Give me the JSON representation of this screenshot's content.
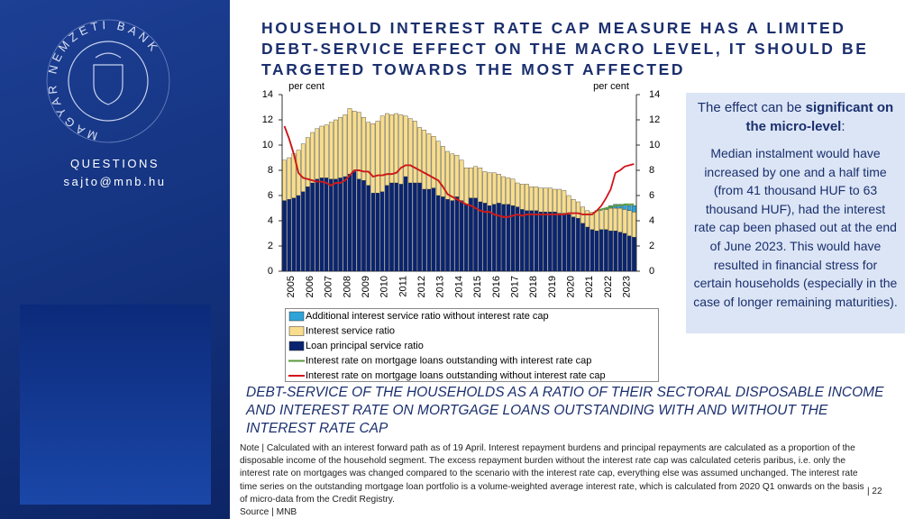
{
  "sidebar": {
    "logo_text": "MAGYAR NEMZETI BANK",
    "questions": "QUESTIONS",
    "email": "sajto@mnb.hu"
  },
  "title": "HOUSEHOLD INTEREST RATE CAP MEASURE HAS A LIMITED DEBT-SERVICE EFFECT ON THE MACRO LEVEL, IT SHOULD BE TARGETED TOWARDS THE MOST AFFECTED",
  "chart_data": {
    "type": "bar",
    "y_unit": "per cent",
    "y2_unit": "per cent",
    "categories": [
      "2005",
      null,
      null,
      null,
      "2006",
      null,
      null,
      null,
      "2007",
      null,
      null,
      null,
      "2008",
      null,
      null,
      null,
      "2009",
      null,
      null,
      null,
      "2010",
      null,
      null,
      null,
      "2011",
      null,
      null,
      null,
      "2012",
      null,
      null,
      null,
      "2013",
      null,
      null,
      null,
      "2014",
      null,
      null,
      null,
      "2015",
      null,
      null,
      null,
      "2016",
      null,
      null,
      null,
      "2017",
      null,
      null,
      null,
      "2018",
      null,
      null,
      null,
      "2019",
      null,
      null,
      null,
      "2020",
      null,
      null,
      null,
      "2021",
      null,
      null,
      null,
      "2022",
      null,
      null,
      null,
      "2023",
      null,
      null,
      null
    ],
    "ylim": [
      0,
      14
    ],
    "yticks": [
      0,
      2,
      4,
      6,
      8,
      10,
      12,
      14
    ],
    "y2lim": [
      0,
      14
    ],
    "y2ticks": [
      0,
      2,
      4,
      6,
      8,
      10,
      12,
      14
    ],
    "stacked": true,
    "series": [
      {
        "name": "Additional interest service ratio without interest rate cap",
        "type": "bar",
        "color": "#2ea3d8",
        "values": [
          null,
          null,
          null,
          null,
          null,
          null,
          null,
          null,
          null,
          null,
          null,
          null,
          null,
          null,
          null,
          null,
          null,
          null,
          null,
          null,
          null,
          null,
          null,
          null,
          null,
          null,
          null,
          null,
          null,
          null,
          null,
          null,
          null,
          null,
          null,
          null,
          null,
          null,
          null,
          null,
          null,
          null,
          null,
          null,
          null,
          null,
          null,
          null,
          null,
          null,
          null,
          null,
          null,
          null,
          null,
          null,
          null,
          null,
          null,
          null,
          null,
          null,
          null,
          null,
          null,
          null,
          null,
          null,
          null,
          0.1,
          0.2,
          0.3,
          0.3,
          0.4,
          0.4,
          0.5
        ]
      },
      {
        "name": "Interest service ratio",
        "type": "bar",
        "color": "#f7dd8c",
        "values": [
          3.2,
          3.3,
          3.5,
          3.6,
          3.8,
          3.9,
          4.0,
          4.0,
          4.1,
          4.2,
          4.5,
          4.7,
          4.8,
          4.9,
          5.2,
          4.8,
          5.3,
          5.0,
          5.0,
          5.5,
          5.7,
          6.0,
          5.7,
          5.4,
          5.5,
          5.5,
          4.8,
          5.1,
          4.9,
          4.4,
          4.7,
          4.4,
          4.1,
          4.3,
          4.0,
          3.8,
          3.7,
          3.3,
          3.2,
          2.9,
          2.4,
          2.5,
          2.7,
          2.5,
          2.6,
          2.5,
          2.3,
          2.2,
          2.1,
          2.1,
          1.9,
          2.0,
          2.1,
          1.9,
          1.9,
          1.9,
          1.9,
          1.9,
          1.8,
          1.9,
          1.8,
          1.5,
          1.4,
          1.3,
          1.3,
          1.3,
          1.4,
          1.6,
          1.5,
          1.6,
          1.8,
          1.8,
          1.9,
          1.9,
          2.0,
          2.0
        ]
      },
      {
        "name": "Loan principal service ratio",
        "type": "bar",
        "color": "#0a2470",
        "values": [
          5.6,
          5.7,
          5.8,
          6.0,
          6.3,
          6.7,
          7.0,
          7.3,
          7.4,
          7.4,
          7.3,
          7.3,
          7.4,
          7.5,
          7.7,
          7.9,
          7.3,
          7.2,
          6.8,
          6.2,
          6.2,
          6.3,
          6.8,
          7.0,
          7.0,
          6.9,
          7.5,
          7.0,
          7.0,
          7.0,
          6.5,
          6.5,
          6.6,
          6.0,
          5.9,
          5.7,
          5.6,
          5.9,
          5.6,
          5.3,
          5.8,
          5.8,
          5.5,
          5.4,
          5.2,
          5.3,
          5.4,
          5.3,
          5.3,
          5.2,
          5.1,
          4.9,
          4.8,
          4.8,
          4.8,
          4.7,
          4.7,
          4.7,
          4.7,
          4.6,
          4.6,
          4.5,
          4.3,
          4.2,
          3.8,
          3.5,
          3.3,
          3.2,
          3.3,
          3.3,
          3.2,
          3.2,
          3.1,
          3.0,
          2.8,
          2.7
        ]
      },
      {
        "name": "Interest rate on mortgage loans outstanding with interest rate cap",
        "type": "line",
        "axis": "y2",
        "color": "#5a9a3c",
        "values": [
          11.5,
          10.5,
          9.3,
          7.8,
          7.4,
          7.3,
          7.2,
          7.1,
          7.1,
          7.0,
          6.8,
          7.0,
          7.0,
          7.2,
          7.6,
          8.0,
          8.0,
          7.9,
          7.9,
          7.5,
          7.6,
          7.6,
          7.7,
          7.7,
          7.8,
          8.2,
          8.4,
          8.4,
          8.2,
          8.0,
          7.8,
          7.6,
          7.4,
          7.2,
          6.7,
          6.1,
          5.9,
          5.7,
          5.5,
          5.3,
          5.2,
          5.0,
          4.8,
          4.7,
          4.7,
          4.5,
          4.4,
          4.3,
          4.3,
          4.4,
          4.5,
          4.4,
          4.5,
          4.5,
          4.5,
          4.5,
          4.5,
          4.5,
          4.5,
          4.5,
          4.5,
          4.6,
          4.6,
          4.6,
          4.5,
          4.5,
          4.5,
          4.8,
          4.9,
          5.0,
          5.1,
          5.2,
          5.2,
          5.3,
          5.3,
          5.3
        ]
      },
      {
        "name": "Interest rate on mortgage loans outstanding without interest rate cap",
        "type": "line",
        "axis": "y2",
        "color": "#d4121a",
        "values": [
          11.5,
          10.5,
          9.3,
          7.8,
          7.4,
          7.3,
          7.2,
          7.1,
          7.1,
          7.0,
          6.8,
          7.0,
          7.0,
          7.2,
          7.6,
          8.0,
          8.0,
          7.9,
          7.9,
          7.5,
          7.6,
          7.6,
          7.7,
          7.7,
          7.8,
          8.2,
          8.4,
          8.4,
          8.2,
          8.0,
          7.8,
          7.6,
          7.4,
          7.2,
          6.7,
          6.1,
          5.9,
          5.7,
          5.5,
          5.3,
          5.2,
          5.0,
          4.8,
          4.7,
          4.7,
          4.5,
          4.4,
          4.3,
          4.3,
          4.4,
          4.5,
          4.4,
          4.5,
          4.5,
          4.5,
          4.5,
          4.5,
          4.5,
          4.5,
          4.5,
          4.5,
          4.6,
          4.6,
          4.6,
          4.5,
          4.5,
          4.5,
          4.8,
          5.2,
          5.8,
          6.5,
          7.8,
          8.0,
          8.3,
          8.4,
          8.5
        ]
      }
    ]
  },
  "callout": {
    "lead": [
      "The effect can be ",
      "significant on the micro-level",
      ":"
    ],
    "body": "Median instalment would have increased by one and a half time (from 41 thousand HUF to 63 thousand  HUF), had the interest rate cap been phased out at the end of June 2023. This would have resulted in financial stress for certain households (especially in the case of longer remaining maturities)."
  },
  "caption": "DEBT-SERVICE OF THE HOUSEHOLDS AS A RATIO OF THEIR SECTORAL DISPOSABLE INCOME AND INTEREST RATE ON MORTGAGE LOANS OUTSTANDING WITH AND WITHOUT THE INTEREST RATE CAP",
  "note": "Note | Calculated with an interest forward path as of 19 April. Interest repayment burdens and principal repayments are calculated as a proportion of the disposable income of the household segment. The excess repayment burden without the interest rate cap was calculated ceteris paribus, i.e. only the interest rate on mortgages was changed compared to the scenario with the interest rate cap, everything else was assumed unchanged. The interest rate time series on the outstanding mortgage loan portfolio is a volume-weighted average interest rate, which is calculated from 2020 Q1 onwards on the basis of micro-data from the Credit Registry.",
  "source": "Source | MNB",
  "page_number": "| 22"
}
